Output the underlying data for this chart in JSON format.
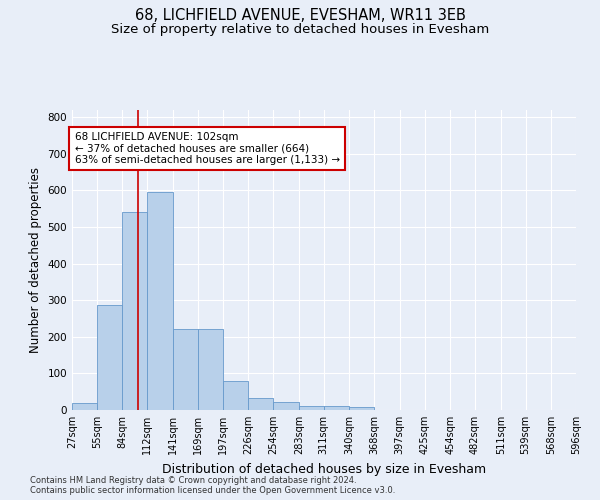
{
  "title_line1": "68, LICHFIELD AVENUE, EVESHAM, WR11 3EB",
  "title_line2": "Size of property relative to detached houses in Evesham",
  "xlabel": "Distribution of detached houses by size in Evesham",
  "ylabel": "Number of detached properties",
  "bin_edges": [
    27,
    55,
    84,
    112,
    141,
    169,
    197,
    226,
    254,
    283,
    311,
    340,
    368,
    397,
    425,
    454,
    482,
    511,
    539,
    568,
    596
  ],
  "bar_heights": [
    20,
    287,
    540,
    597,
    222,
    222,
    80,
    33,
    22,
    12,
    10,
    7,
    0,
    0,
    0,
    0,
    0,
    0,
    0,
    0
  ],
  "bar_color": "#b8d0ea",
  "bar_edge_color": "#6699cc",
  "vline_x": 102,
  "vline_color": "#cc0000",
  "annotation_text": "68 LICHFIELD AVENUE: 102sqm\n← 37% of detached houses are smaller (664)\n63% of semi-detached houses are larger (1,133) →",
  "annotation_box_color": "#ffffff",
  "annotation_box_edge": "#cc0000",
  "ylim": [
    0,
    820
  ],
  "yticks": [
    0,
    100,
    200,
    300,
    400,
    500,
    600,
    700,
    800
  ],
  "tick_labels": [
    "27sqm",
    "55sqm",
    "84sqm",
    "112sqm",
    "141sqm",
    "169sqm",
    "197sqm",
    "226sqm",
    "254sqm",
    "283sqm",
    "311sqm",
    "340sqm",
    "368sqm",
    "397sqm",
    "425sqm",
    "454sqm",
    "482sqm",
    "511sqm",
    "539sqm",
    "568sqm",
    "596sqm"
  ],
  "footer_text": "Contains HM Land Registry data © Crown copyright and database right 2024.\nContains public sector information licensed under the Open Government Licence v3.0.",
  "bg_color": "#e8eef8",
  "plot_bg_color": "#e8eef8",
  "grid_color": "#ffffff",
  "title_fontsize": 10.5,
  "subtitle_fontsize": 9.5,
  "axis_label_fontsize": 8.5,
  "tick_fontsize": 7,
  "annotation_fontsize": 7.5,
  "footer_fontsize": 6.0
}
